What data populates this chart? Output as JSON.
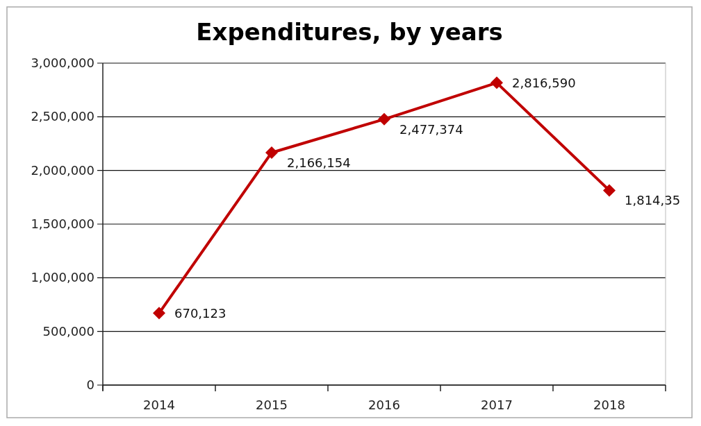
{
  "chart_data": {
    "type": "line",
    "title": "Expenditures, by years",
    "categories": [
      "2014",
      "2015",
      "2016",
      "2017",
      "2018"
    ],
    "series": [
      {
        "color": "#c00000",
        "values": [
          670123,
          2166154,
          2477374,
          2816590,
          1814350
        ],
        "value_labels": [
          "670,123",
          "2,166,154",
          "2,477,374",
          "2,816,590",
          "1,814,35"
        ]
      }
    ],
    "ylim": [
      0,
      3000000
    ],
    "yticks": [
      {
        "value": 0,
        "label": "0"
      },
      {
        "value": 500000,
        "label": "500,000"
      },
      {
        "value": 1000000,
        "label": "1,000,000"
      },
      {
        "value": 1500000,
        "label": "1,500,000"
      },
      {
        "value": 2000000,
        "label": "2,000,000"
      },
      {
        "value": 2500000,
        "label": "2,500,000"
      },
      {
        "value": 3000000,
        "label": "3,000,000"
      }
    ],
    "grid": "y",
    "marker": "diamond",
    "line_style": "solid"
  }
}
